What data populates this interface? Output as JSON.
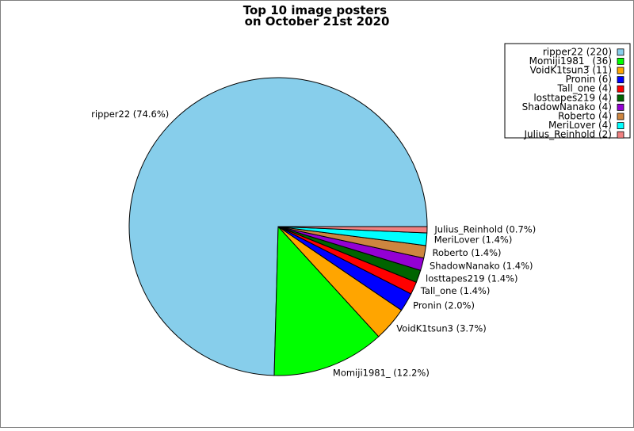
{
  "chart_data": {
    "type": "pie",
    "title": "Top 10 image posters\non October 21st 2020",
    "legend_position": "top-right",
    "slices": [
      {
        "name": "ripper22",
        "count": 220,
        "percent_label": "74.6%",
        "color": "#87ceeb"
      },
      {
        "name": "Momiji1981_",
        "count": 36,
        "percent_label": "12.2%",
        "color": "#00ff00"
      },
      {
        "name": "VoidK1tsun3",
        "count": 11,
        "percent_label": "3.7%",
        "color": "#ffa500"
      },
      {
        "name": "Pronin",
        "count": 6,
        "percent_label": "2.0%",
        "color": "#0000ff"
      },
      {
        "name": "Tall_one",
        "count": 4,
        "percent_label": "1.4%",
        "color": "#ff0000"
      },
      {
        "name": "losttapes219",
        "count": 4,
        "percent_label": "1.4%",
        "color": "#006400"
      },
      {
        "name": "ShadowNanako",
        "count": 4,
        "percent_label": "1.4%",
        "color": "#9400d3"
      },
      {
        "name": "Roberto",
        "count": 4,
        "percent_label": "1.4%",
        "color": "#cd853f"
      },
      {
        "name": "MeriLover",
        "count": 4,
        "percent_label": "1.4%",
        "color": "#00ffff"
      },
      {
        "name": "Julius_Reinhold",
        "count": 2,
        "percent_label": "0.7%",
        "color": "#f08080"
      }
    ]
  }
}
